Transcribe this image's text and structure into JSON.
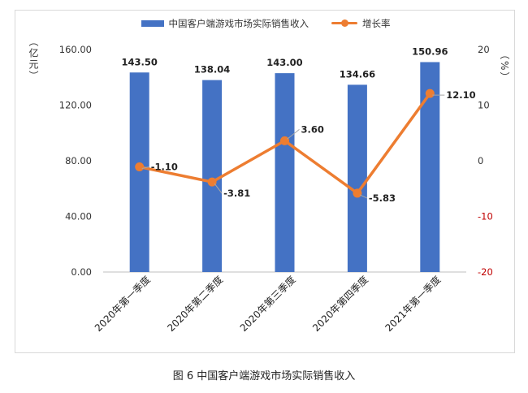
{
  "colors": {
    "bar": "#4472c4",
    "line": "#ed7d31",
    "axis_text": "#333333",
    "negative": "#c00000"
  },
  "legend": {
    "bar_label": "中国客户端游戏市场实际销售收入",
    "line_label": "增长率"
  },
  "axes": {
    "left_unit": "（亿元）",
    "right_unit": "（%）"
  },
  "caption": "图 6  中国客户端游戏市场实际销售收入",
  "chart_data": {
    "type": "bar",
    "categories": [
      "2020年第一季度",
      "2020年第二季度",
      "2020年第三季度",
      "2020年第四季度",
      "2021年第一季度"
    ],
    "series": [
      {
        "name": "中国客户端游戏市场实际销售收入",
        "type": "bar",
        "axis": "left",
        "values": [
          143.5,
          138.04,
          143.0,
          134.66,
          150.96
        ],
        "labels": [
          "143.50",
          "138.04",
          "143.00",
          "134.66",
          "150.96"
        ]
      },
      {
        "name": "增长率",
        "type": "line",
        "axis": "right",
        "values": [
          -1.1,
          -3.81,
          3.6,
          -5.83,
          12.1
        ],
        "labels": [
          "-1.10",
          "-3.81",
          "3.60",
          "-5.83",
          "12.10"
        ]
      }
    ],
    "left_axis": {
      "ylim": [
        0,
        160
      ],
      "ticks": [
        "0.00",
        "40.00",
        "80.00",
        "120.00",
        "160.00"
      ]
    },
    "right_axis": {
      "ylim": [
        -20,
        20
      ],
      "ticks": [
        "-20",
        "-10",
        "0",
        "10",
        "20"
      ]
    },
    "grid": false,
    "legend_position": "top"
  }
}
